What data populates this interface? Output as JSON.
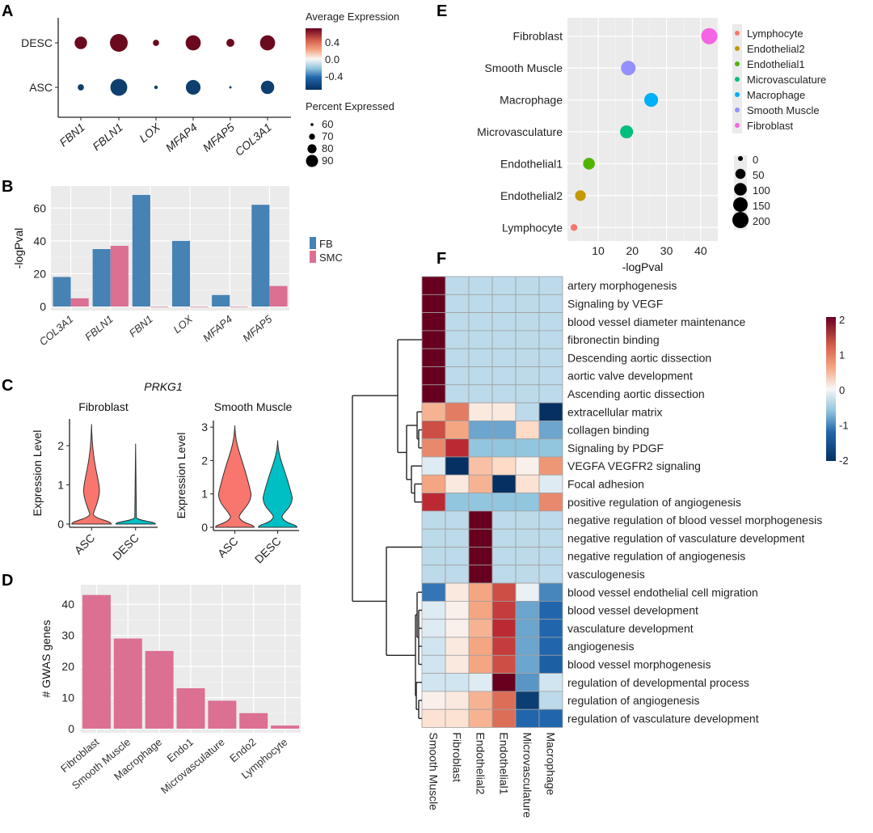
{
  "figure": {
    "panel_labels": [
      "A",
      "B",
      "C",
      "D",
      "E",
      "F"
    ]
  },
  "chart_data": [
    {
      "id": "A",
      "type": "scatter",
      "subtype": "dotplot",
      "title": "",
      "xlabel": "",
      "ylabel": "",
      "categories": [
        "FBN1",
        "FBLN1",
        "LOX",
        "MFAP4",
        "MFAP5",
        "COL3A1"
      ],
      "rows": [
        "DESC",
        "ASC"
      ],
      "avg_expression": {
        "DESC": [
          0.7,
          0.7,
          0.7,
          0.7,
          0.7,
          0.7
        ],
        "ASC": [
          -0.7,
          -0.7,
          -0.7,
          -0.7,
          -0.7,
          -0.7
        ]
      },
      "percent_expressed": {
        "DESC": [
          80,
          92,
          66,
          86,
          70,
          86
        ],
        "ASC": [
          66,
          90,
          60,
          85,
          55,
          82
        ]
      },
      "color_legend": {
        "title": "Average Expression",
        "ticks": [
          "0.4",
          "0.0",
          "-0.4"
        ],
        "low": "#053061",
        "mid": "#f7f7f7",
        "high": "#67001f"
      },
      "size_legend": {
        "title": "Percent Expressed",
        "values": [
          60,
          70,
          80,
          90
        ]
      }
    },
    {
      "id": "B",
      "type": "bar",
      "title": "",
      "xlabel": "",
      "ylabel": "-logPval",
      "ylim": [
        0,
        70
      ],
      "yticks": [
        "0",
        "20",
        "40",
        "60"
      ],
      "categories": [
        "COL3A1",
        "FBLN1",
        "FBN1",
        "LOX",
        "MFAP4",
        "MFAP5"
      ],
      "series": [
        {
          "name": "FB",
          "color": "#4682b4",
          "values": [
            18,
            35,
            68,
            40,
            7,
            62
          ]
        },
        {
          "name": "SMC",
          "color": "#db7093",
          "values": [
            5,
            37,
            0,
            0,
            0,
            12.5
          ]
        }
      ],
      "legend_position": "right",
      "grid": true
    },
    {
      "id": "C",
      "type": "violin",
      "title": "PRKG1",
      "panels": [
        {
          "subtitle": "Fibroblast",
          "ylabel": "Expression Level",
          "yticks": [
            "0",
            "1",
            "2"
          ],
          "ymax": 2.6,
          "groups": [
            {
              "name": "ASC",
              "color": "#f8766d",
              "max": 2.55
            },
            {
              "name": "DESC",
              "color": "#00bfc4",
              "max": 2.05
            }
          ]
        },
        {
          "subtitle": "Smooth Muscle",
          "ylabel": "Expression Level",
          "yticks": [
            "0",
            "1",
            "2",
            "3"
          ],
          "ymax": 3.1,
          "groups": [
            {
              "name": "ASC",
              "color": "#f8766d",
              "max": 3.05
            },
            {
              "name": "DESC",
              "color": "#00bfc4",
              "max": 2.6
            }
          ]
        }
      ]
    },
    {
      "id": "D",
      "type": "bar",
      "title": "",
      "xlabel": "",
      "ylabel": "# GWAS genes",
      "ylim": [
        0,
        45
      ],
      "yticks": [
        "0",
        "10",
        "20",
        "30",
        "40"
      ],
      "categories": [
        "Fibroblast",
        "Smooth Muscle",
        "Macrophage",
        "Endo1",
        "Microvasculature",
        "Endo2",
        "Lymphocyte"
      ],
      "values": [
        43,
        29,
        25,
        13,
        9,
        5,
        1
      ],
      "color": "#db7093",
      "grid": true
    },
    {
      "id": "E",
      "type": "scatter",
      "title": "",
      "xlabel": "-logPval",
      "ylabel": "",
      "xlim": [
        1,
        45
      ],
      "xticks": [
        "10",
        "20",
        "30",
        "40"
      ],
      "categories": [
        "Fibroblast",
        "Smooth Muscle",
        "Macrophage",
        "Microvasculature",
        "Endothelial1",
        "Endothelial2",
        "Lymphocyte"
      ],
      "x": [
        42.5,
        18.8,
        25.5,
        18.3,
        7.3,
        4.8,
        2.9
      ],
      "size": [
        200,
        150,
        130,
        110,
        80,
        60,
        10
      ],
      "colors": [
        "#f564e3",
        "#9590ff",
        "#00b0f6",
        "#00bf7d",
        "#53b400",
        "#c49a00",
        "#f8766d"
      ],
      "legend": [
        "Lymphocyte",
        "Endothelial2",
        "Endothelial1",
        "Microvasculature",
        "Macrophage",
        "Smooth Muscle",
        "Fibroblast"
      ],
      "legend_colors": [
        "#f8766d",
        "#c49a00",
        "#53b400",
        "#00bf7d",
        "#00b0f6",
        "#9590ff",
        "#f564e3"
      ],
      "size_legend": [
        0,
        50,
        100,
        150,
        200
      ],
      "legend_position": "right",
      "grid": true
    },
    {
      "id": "F",
      "type": "heatmap",
      "title": "",
      "columns": [
        "Smooth Muscle",
        "Fibroblast",
        "Endothelial2",
        "Endothelial1",
        "Microvasculature",
        "Macrophage"
      ],
      "rows": [
        "artery morphogenesis",
        "Signaling by VEGF",
        "blood vessel diameter maintenance",
        "fibronectin binding",
        "Descending aortic dissection",
        "aortic valve development",
        "Ascending aortic dissection",
        "extracellular matrix",
        "collagen binding",
        "Signaling by PDGF",
        "VEGFA VEGFR2 signaling",
        "Focal adhesion",
        "positive regulation of angiogenesis",
        "negative regulation of blood vessel morphogenesis",
        "negative regulation of vasculature development",
        "negative regulation of angiogenesis",
        "vasculogenesis",
        "blood vessel endothelial cell migration",
        "blood vessel development",
        "vasculature development",
        "angiogenesis",
        "blood vessel morphogenesis",
        "regulation of developmental process",
        "regulation of angiogenesis",
        "regulation of vasculature development"
      ],
      "values": [
        [
          2.2,
          -0.4,
          -0.4,
          -0.4,
          -0.4,
          -0.4
        ],
        [
          2.2,
          -0.4,
          -0.4,
          -0.4,
          -0.4,
          -0.4
        ],
        [
          2.2,
          -0.4,
          -0.4,
          -0.4,
          -0.4,
          -0.4
        ],
        [
          2.2,
          -0.4,
          -0.4,
          -0.4,
          -0.4,
          -0.4
        ],
        [
          2.2,
          -0.4,
          -0.4,
          -0.4,
          -0.4,
          -0.4
        ],
        [
          2.2,
          -0.4,
          -0.4,
          -0.4,
          -0.4,
          -0.4
        ],
        [
          2.2,
          -0.4,
          -0.4,
          -0.4,
          -0.4,
          -0.4
        ],
        [
          0.7,
          1.1,
          0.2,
          0.2,
          -0.4,
          -2.0
        ],
        [
          1.4,
          0.8,
          -0.8,
          -0.8,
          0.4,
          -0.8
        ],
        [
          1.0,
          1.6,
          -0.6,
          -0.6,
          -0.6,
          -0.6
        ],
        [
          -0.2,
          -2.2,
          0.6,
          0.4,
          0.1,
          0.9
        ],
        [
          0.8,
          0.2,
          0.7,
          -2.2,
          0.3,
          -0.2
        ],
        [
          1.6,
          -0.6,
          -0.6,
          -0.6,
          -0.6,
          1.0
        ],
        [
          -0.4,
          -0.4,
          2.2,
          -0.4,
          -0.4,
          -0.4
        ],
        [
          -0.4,
          -0.4,
          2.2,
          -0.4,
          -0.4,
          -0.4
        ],
        [
          -0.4,
          -0.4,
          2.2,
          -0.4,
          -0.4,
          -0.4
        ],
        [
          -0.4,
          -0.4,
          2.2,
          -0.4,
          -0.4,
          -0.4
        ],
        [
          -1.1,
          0.2,
          0.8,
          1.4,
          -0.1,
          -1.0
        ],
        [
          -0.2,
          0.1,
          0.8,
          1.5,
          -0.8,
          -1.2
        ],
        [
          -0.2,
          0.1,
          0.7,
          1.6,
          -0.8,
          -1.2
        ],
        [
          -0.3,
          0.2,
          0.8,
          1.5,
          -0.8,
          -1.2
        ],
        [
          -0.3,
          0.2,
          0.8,
          1.4,
          -0.8,
          -1.3
        ],
        [
          -0.3,
          -0.3,
          -0.2,
          2.2,
          -0.9,
          -0.3
        ],
        [
          0.1,
          0.2,
          0.7,
          1.2,
          -1.8,
          -0.4
        ],
        [
          0.3,
          0.3,
          0.7,
          1.2,
          -1.2,
          -1.2
        ]
      ],
      "colorbar": {
        "ticks": [
          "2",
          "1",
          "0",
          "-1",
          "-2"
        ],
        "range": [
          -2,
          2
        ],
        "low": "#053061",
        "mid": "#f7f7f7",
        "high": "#67001f"
      }
    }
  ]
}
